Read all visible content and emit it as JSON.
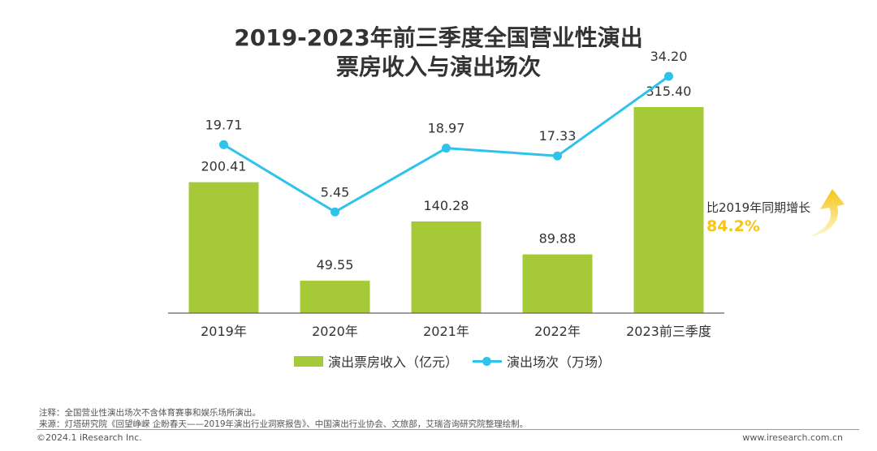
{
  "header": {
    "title_line1": "2019-2023年前三季度全国营业性演出",
    "title_line2": "票房收入与演出场次"
  },
  "chart_data": {
    "type": "bar",
    "categories": [
      "2019年",
      "2020年",
      "2021年",
      "2022年",
      "2023前三季度"
    ],
    "series": [
      {
        "name": "演出票房收入（亿元）",
        "type": "bar",
        "values": [
          200.41,
          49.55,
          140.28,
          89.88,
          315.4
        ],
        "labels": [
          "200.41",
          "49.55",
          "140.28",
          "89.88",
          "315.40"
        ],
        "ylim": [
          0,
          380
        ]
      },
      {
        "name": "演出场次（万场）",
        "type": "line",
        "values": [
          19.71,
          5.45,
          18.97,
          17.33,
          34.2
        ],
        "labels": [
          "19.71",
          "5.45",
          "18.97",
          "17.33",
          "34.20"
        ],
        "ylim": [
          -16,
          38
        ]
      }
    ],
    "title": "2019-2023年前三季度全国营业性演出票房收入与演出场次",
    "xlabel": "",
    "ylabel": "",
    "legend": "bottom-center"
  },
  "callout": {
    "text": "比2019年同期增长",
    "percent": "84.2%"
  },
  "footer": {
    "note": "注释：全国营业性演出场次不含体育赛事和娱乐场所演出。",
    "source": "来源：灯塔研究院《回望峥嵘 企盼春天——2019年演出行业洞察报告》、中国演出行业协会、文旅部，艾瑞咨询研究院整理绘制。",
    "copyright": "©2024.1 iResearch Inc.",
    "website": "www.iresearch.com.cn"
  },
  "colors": {
    "bar": "#a6c937",
    "line": "#2ec3ea",
    "highlight": "#f5c518",
    "axis": "#666666"
  }
}
